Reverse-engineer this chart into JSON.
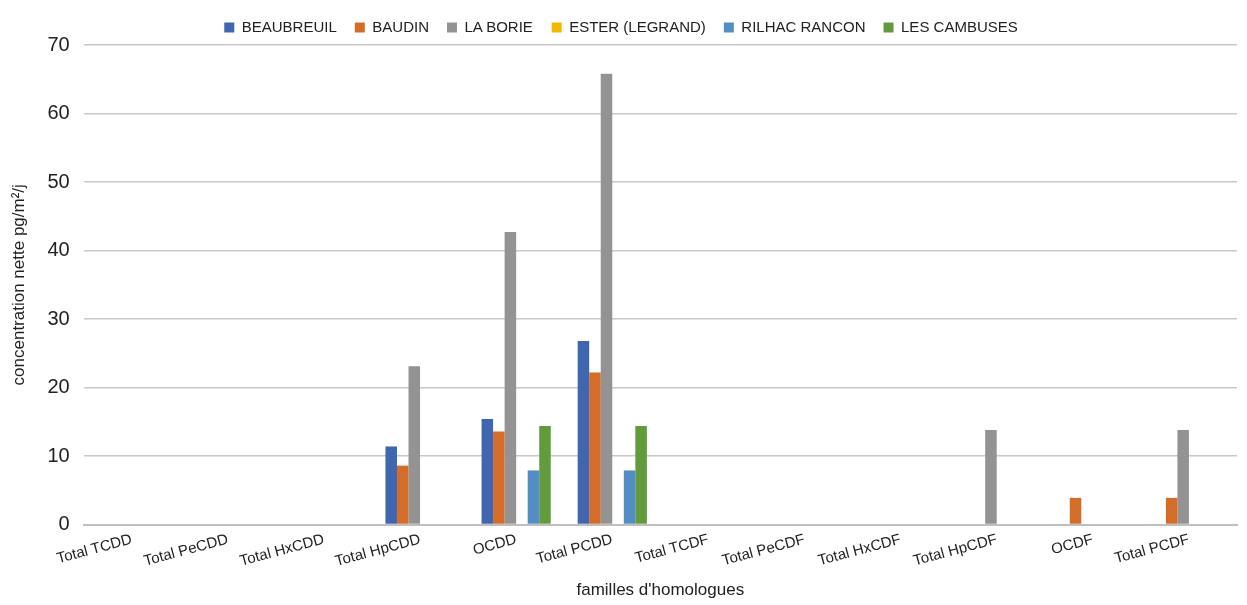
{
  "chart_data": {
    "type": "bar",
    "xlabel": "familles d'homologues",
    "ylabel": "concentration nette pg/m²/j",
    "categories": [
      "Total TCDD",
      "Total PeCDD",
      "Total HxCDD",
      "Total HpCDD",
      "OCDD",
      "Total PCDD",
      "Total TCDF",
      "Total PeCDF",
      "Total HxCDF",
      "Total HpCDF",
      "OCDF",
      "Total PCDF"
    ],
    "series": [
      {
        "name": "BEAUBREUIL",
        "color": "#4066b0",
        "values": [
          0,
          0,
          0,
          11.4,
          15.4,
          26.8,
          0,
          0,
          0,
          0,
          0,
          0
        ]
      },
      {
        "name": "BAUDIN",
        "color": "#d46d2a",
        "values": [
          0,
          0,
          0,
          8.6,
          13.6,
          22.2,
          0,
          0,
          0,
          0,
          3.9,
          3.9
        ]
      },
      {
        "name": "LA BORIE",
        "color": "#939393",
        "values": [
          0,
          0,
          0,
          23.1,
          42.7,
          65.8,
          0,
          0,
          0,
          13.8,
          0,
          13.8
        ]
      },
      {
        "name": "ESTER (LEGRAND)",
        "color": "#f0b800",
        "values": [
          0,
          0,
          0,
          0,
          0,
          0,
          0,
          0,
          0,
          0,
          0,
          0
        ]
      },
      {
        "name": "RILHAC RANCON",
        "color": "#528dc4",
        "values": [
          0,
          0,
          0,
          0,
          7.9,
          7.9,
          0,
          0,
          0,
          0,
          0,
          0
        ]
      },
      {
        "name": "LES CAMBUSES",
        "color": "#639a3c",
        "values": [
          0,
          0,
          0,
          0,
          14.4,
          14.4,
          0,
          0,
          0,
          0,
          0,
          0
        ]
      }
    ],
    "ylim": [
      0,
      70
    ],
    "yticks": [
      0,
      10,
      20,
      30,
      40,
      50,
      60,
      70
    ],
    "grid": "y",
    "legend": "top"
  }
}
